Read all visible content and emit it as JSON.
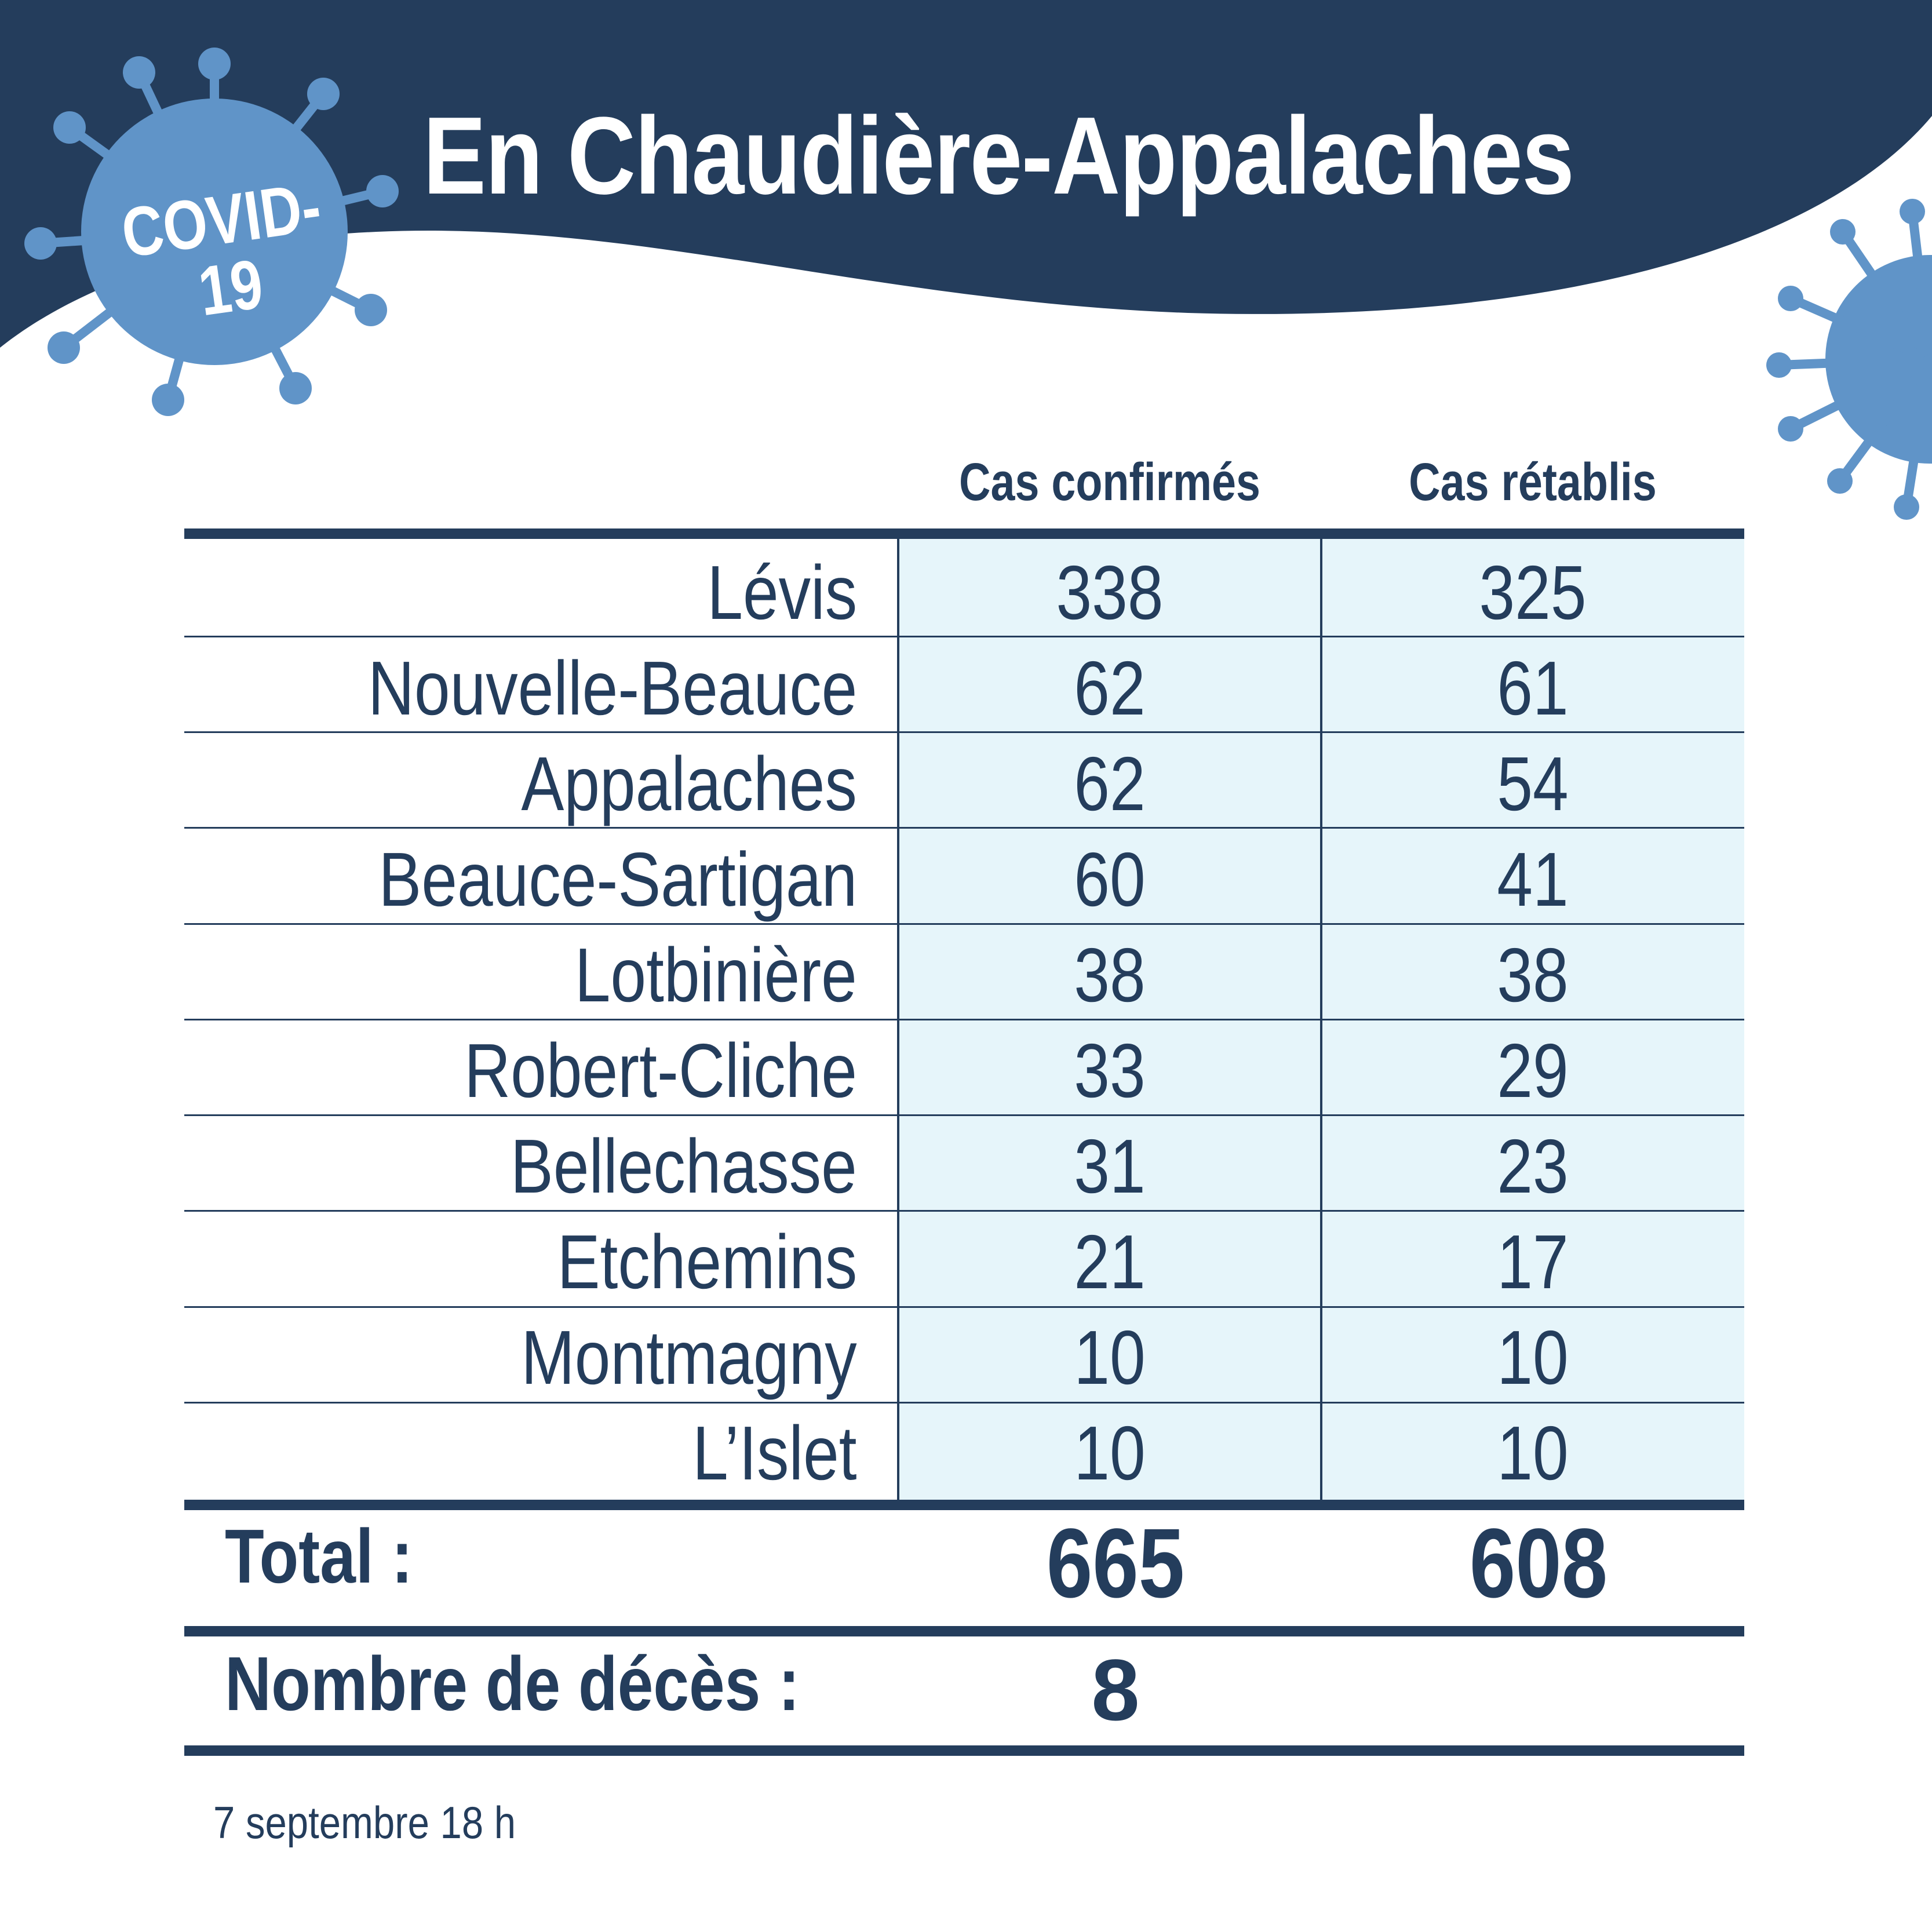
{
  "header": {
    "title": "En Chaudière-Appalaches",
    "badge_text": "COVID-\n19"
  },
  "table": {
    "columns": [
      "Cas confirmés",
      "Cas rétablis"
    ],
    "rows": [
      {
        "region": "Lévis",
        "confirmed": "338",
        "recovered": "325"
      },
      {
        "region": "Nouvelle-Beauce",
        "confirmed": "62",
        "recovered": "61"
      },
      {
        "region": "Appalaches",
        "confirmed": "62",
        "recovered": "54"
      },
      {
        "region": "Beauce-Sartigan",
        "confirmed": "60",
        "recovered": "41"
      },
      {
        "region": "Lotbinière",
        "confirmed": "38",
        "recovered": "38"
      },
      {
        "region": "Robert-Cliche",
        "confirmed": "33",
        "recovered": "29"
      },
      {
        "region": "Bellechasse",
        "confirmed": "31",
        "recovered": "23"
      },
      {
        "region": "Etchemins",
        "confirmed": "21",
        "recovered": "17"
      },
      {
        "region": "Montmagny",
        "confirmed": "10",
        "recovered": "10"
      },
      {
        "region": "L’Islet",
        "confirmed": "10",
        "recovered": "10"
      }
    ],
    "total": {
      "label": "Total :",
      "confirmed": "665",
      "recovered": "608"
    },
    "deaths": {
      "label": "Nombre de décès :",
      "value": "8"
    }
  },
  "footer": {
    "date": "7 septembre 18 h"
  },
  "colors": {
    "navy": "#243d5c",
    "virus_blue": "#6094c8",
    "cell_shade": "#e6f5fa"
  },
  "icons": {
    "badge": "virus-icon",
    "decoration": "virus-icon"
  }
}
